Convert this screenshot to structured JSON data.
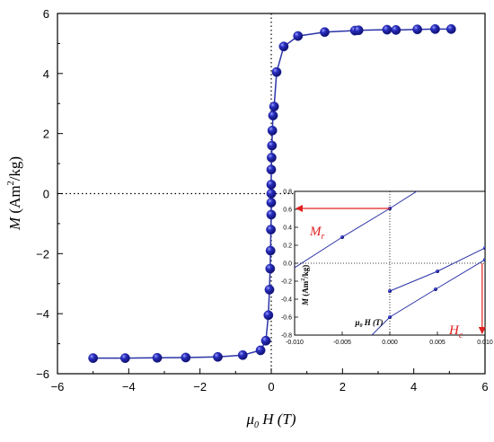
{
  "chart_data": [
    {
      "type": "line",
      "name": "main",
      "xlabel_sym": "μ",
      "xlabel_sub": "0",
      "xlabel_rest": " H (T)",
      "ylabel_sym": "M",
      "ylabel_open": " (Am",
      "ylabel_sup": "2",
      "ylabel_close": "/kg)",
      "xlim": [
        -6,
        6
      ],
      "ylim": [
        -6,
        6
      ],
      "xticks": [
        -6,
        -4,
        -2,
        0,
        2,
        4,
        6
      ],
      "yticks": [
        -6,
        -4,
        -2,
        0,
        2,
        4,
        6
      ],
      "xtick_labels": [
        "−6",
        "−4",
        "−2",
        "0",
        "2",
        "4",
        "6"
      ],
      "ytick_labels": [
        "−6",
        "−4",
        "−2",
        "0",
        "2",
        "4",
        "6"
      ],
      "line_color": "#2b33a6",
      "marker_color": "#1c1f9a",
      "series": [
        {
          "x": [
            -5.0,
            -4.1,
            -3.2,
            -2.4,
            -1.5,
            -0.8,
            -0.3,
            -0.15,
            -0.08,
            -0.05,
            -0.03,
            -0.02,
            -0.01,
            0.0,
            0.0,
            0.0,
            0.0,
            0.0,
            0.01,
            0.02,
            0.03,
            0.05,
            0.08,
            0.15,
            0.35,
            0.75,
            1.5,
            2.35,
            2.45,
            3.25,
            3.5,
            4.1,
            4.6,
            5.05
          ],
          "y": [
            -5.48,
            -5.48,
            -5.47,
            -5.46,
            -5.44,
            -5.38,
            -5.22,
            -4.9,
            -4.05,
            -3.2,
            -2.5,
            -1.9,
            -1.2,
            -0.7,
            -0.3,
            0.0,
            0.3,
            0.8,
            1.2,
            1.6,
            2.1,
            2.6,
            2.9,
            4.05,
            4.9,
            5.25,
            5.38,
            5.43,
            5.44,
            5.46,
            5.45,
            5.47,
            5.48,
            5.48
          ]
        }
      ]
    },
    {
      "type": "line",
      "name": "inset",
      "xlabel_sym": "μ",
      "xlabel_sub": "0",
      "xlabel_rest": " H (T)",
      "ylabel_sym": "M",
      "ylabel_open": " (Am",
      "ylabel_sup": "2",
      "ylabel_close": "/kg)",
      "xlim": [
        -0.01,
        0.01
      ],
      "ylim": [
        -0.8,
        0.8
      ],
      "xticks": [
        -0.01,
        -0.005,
        0.0,
        0.005,
        0.01
      ],
      "xtick_labels": [
        "-0.010",
        "-0.005",
        "0.000",
        "0.005",
        "0.010"
      ],
      "yticks": [
        -0.8,
        -0.6,
        -0.4,
        -0.2,
        0.0,
        0.2,
        0.4,
        0.6,
        0.8
      ],
      "ytick_labels": [
        "-0.8",
        "-0.6",
        "-0.4",
        "-0.2",
        "0.0",
        "0.2",
        "0.4",
        "0.6",
        "0.8"
      ],
      "series": [
        {
          "x": [
            -0.01,
            -0.005,
            0.0,
            0.0055
          ],
          "y": [
            -0.05,
            0.29,
            0.61,
            0.98
          ]
        },
        {
          "x": [
            0.0,
            0.005,
            0.01
          ],
          "y": [
            -0.31,
            -0.09,
            0.17
          ]
        },
        {
          "x": [
            -0.0035,
            0.0,
            0.0048,
            0.01
          ],
          "y": [
            -0.97,
            -0.6,
            -0.29,
            0.04
          ]
        }
      ],
      "annotations": [
        {
          "label": "M",
          "sub": "r",
          "value": 0.61
        },
        {
          "label": "H",
          "sub": "c",
          "value": 0.0097
        }
      ],
      "annotation_color": "#e02020"
    }
  ]
}
